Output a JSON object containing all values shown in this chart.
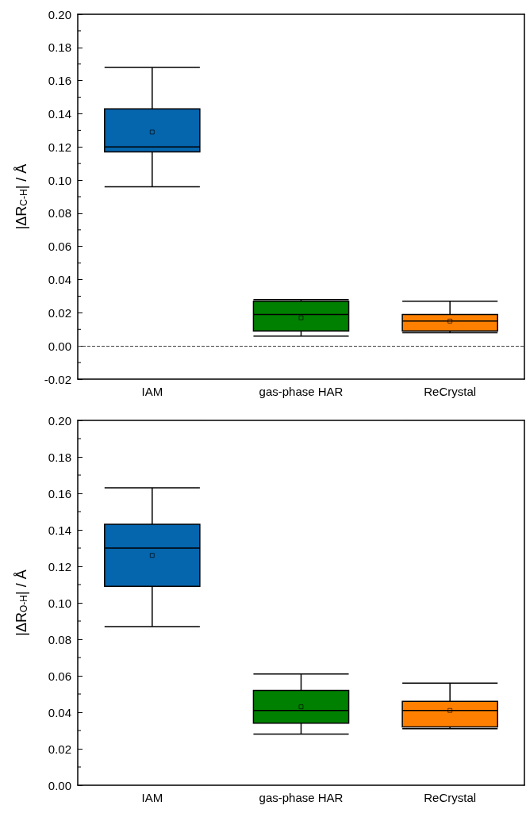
{
  "chart_data": [
    {
      "type": "box",
      "ylabel": "|ΔR$_{C-H}$| / Å",
      "categories": [
        "IAM",
        "gas-phase HAR",
        "ReCrystal"
      ],
      "colors": [
        "#0565ad",
        "#008000",
        "#ff8000"
      ],
      "boxes": [
        {
          "low": 0.096,
          "q1": 0.117,
          "median": 0.12,
          "q3": 0.143,
          "high": 0.168,
          "mean": 0.129
        },
        {
          "low": 0.006,
          "q1": 0.009,
          "median": 0.019,
          "q3": 0.027,
          "high": 0.028,
          "mean": 0.017
        },
        {
          "low": 0.008,
          "q1": 0.009,
          "median": 0.015,
          "q3": 0.019,
          "high": 0.027,
          "mean": 0.015
        }
      ],
      "ylim": [
        -0.02,
        0.2
      ],
      "yticks": [
        -0.02,
        {
          "value": 0,
          "label": "0.00"
        },
        0.02,
        0.04,
        0.06,
        0.08,
        {
          "value": 0.1,
          "label": "0.10"
        },
        0.12,
        0.14,
        0.16,
        0.18,
        {
          "value": 0.2,
          "label": "0.20"
        }
      ],
      "grid": false,
      "ref_lines": [
        {
          "axis": "y",
          "value": 0,
          "line_style": "dashed",
          "color": "#404040"
        }
      ]
    },
    {
      "type": "box",
      "ylabel": "|ΔR$_{O-H}$| / Å",
      "categories": [
        "IAM",
        "gas-phase HAR",
        "ReCrystal"
      ],
      "colors": [
        "#0565ad",
        "#008000",
        "#ff8000"
      ],
      "boxes": [
        {
          "low": 0.087,
          "q1": 0.109,
          "median": 0.13,
          "q3": 0.143,
          "high": 0.163,
          "mean": 0.126
        },
        {
          "low": 0.028,
          "q1": 0.034,
          "median": 0.041,
          "q3": 0.052,
          "high": 0.061,
          "mean": 0.043
        },
        {
          "low": 0.031,
          "q1": 0.032,
          "median": 0.041,
          "q3": 0.046,
          "high": 0.056,
          "mean": 0.041
        }
      ],
      "ylim": [
        0,
        0.2
      ],
      "yticks": [
        {
          "value": 0,
          "label": "0.00"
        },
        0.02,
        0.04,
        0.06,
        0.08,
        {
          "value": 0.1,
          "label": "0.10"
        },
        0.12,
        0.14,
        0.16,
        0.18,
        {
          "value": 0.2,
          "label": "0.20"
        }
      ],
      "grid": false
    }
  ]
}
